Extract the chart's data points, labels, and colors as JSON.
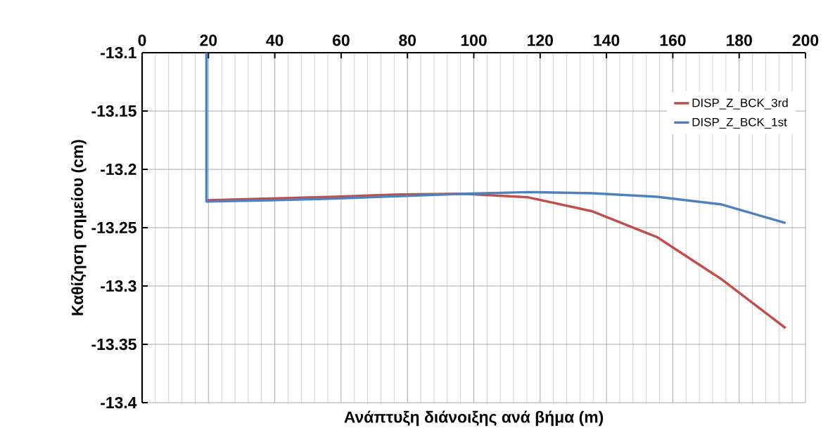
{
  "chart_data": {
    "type": "line",
    "xlabel": "Ανάπτυξη διάνοιξης ανά βήμα (m)",
    "ylabel": "Καθίζηση σημείου (cm)",
    "x": [
      19.4,
      19.4,
      38.8,
      58.2,
      77.6,
      97,
      116.4,
      135.8,
      155.2,
      174.6,
      194
    ],
    "series": [
      {
        "name": "DISP_Z_BCK_3rd",
        "color": "#c0504d",
        "values": [
          null,
          -13.2265,
          -13.225,
          -13.2235,
          -13.2215,
          -13.221,
          -13.224,
          -13.236,
          -13.258,
          -13.294,
          -13.336
        ]
      },
      {
        "name": "DISP_Z_BCK_1st",
        "color": "#4f81bd",
        "values": [
          -13.1,
          -13.2275,
          -13.2265,
          -13.225,
          -13.223,
          -13.221,
          -13.2195,
          -13.2205,
          -13.2235,
          -13.23,
          -13.246
        ]
      }
    ],
    "xlim": [
      0,
      200
    ],
    "xticks": [
      0,
      20,
      40,
      60,
      80,
      100,
      120,
      140,
      160,
      180,
      200
    ],
    "ylim": [
      -13.4,
      -13.1
    ],
    "yticks": [
      -13.4,
      -13.35,
      -13.3,
      -13.25,
      -13.2,
      -13.15,
      -13.1
    ],
    "grid": true,
    "legend": "top right",
    "marker": "none",
    "line_style": "solid"
  }
}
